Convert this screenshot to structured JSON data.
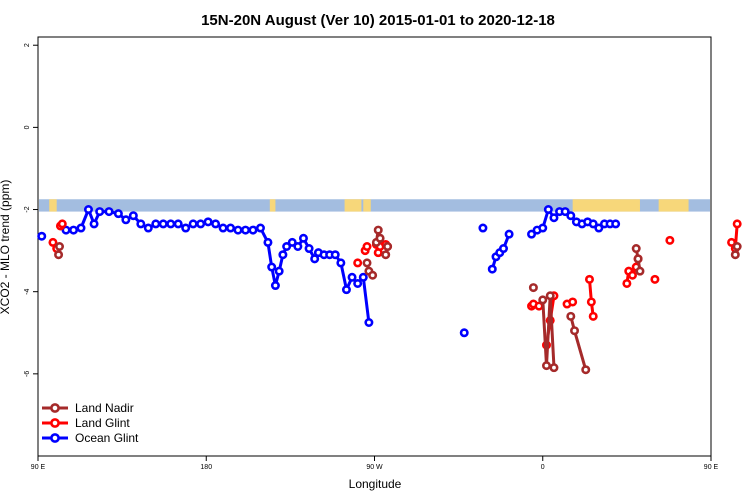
{
  "chart_data": {
    "type": "line",
    "title": "15N-20N August (Ver 10)   2015-01-01 to 2020-12-18",
    "xlabel": "Longitude",
    "ylabel": "XCO2 - MLO trend (ppm)",
    "xlim": [
      90,
      450
    ],
    "ylim": [
      -8,
      2.2
    ],
    "x_ticks": [
      {
        "value": 90,
        "label": "90 E"
      },
      {
        "value": 180,
        "label": "180"
      },
      {
        "value": 270,
        "label": "90 W"
      },
      {
        "value": 360,
        "label": "0"
      },
      {
        "value": 450,
        "label": "90 E"
      },
      {
        "value": 540,
        "label": "180"
      }
    ],
    "y_ticks": [
      {
        "value": 2,
        "label": "2"
      },
      {
        "value": 0,
        "label": "0"
      },
      {
        "value": -2,
        "label": "-2"
      },
      {
        "value": -4,
        "label": "-4"
      },
      {
        "value": -6,
        "label": "-6"
      }
    ],
    "grid": false,
    "legend_position": "bottom-left",
    "land_ocean_strip": {
      "y_range": [
        -1.75,
        -2.05
      ],
      "ocean_color": "#a3bde0",
      "land_color": "#f7d77a",
      "land_segments": [
        [
          96,
          100
        ],
        [
          214,
          217
        ],
        [
          254,
          263
        ],
        [
          264,
          268
        ],
        [
          376,
          412
        ],
        [
          422,
          438
        ],
        [
          456,
          462
        ],
        [
          510,
          520
        ]
      ]
    },
    "series": [
      {
        "name": "Land Nadir",
        "color": "#a52a2a",
        "segments": [
          [
            [
              101,
              -3.1
            ],
            [
              101.5,
              -2.9
            ]
          ],
          [
            [
              266,
              -3.3
            ],
            [
              267,
              -3.5
            ],
            [
              269,
              -3.6
            ]
          ],
          [
            [
              271,
              -2.8
            ],
            [
              272,
              -2.5
            ],
            [
              273,
              -2.7
            ]
          ],
          [
            [
              276,
              -3.1
            ],
            [
              277,
              -2.9
            ]
          ],
          [
            [
              355,
              -3.9
            ]
          ],
          [
            [
              360,
              -4.2
            ],
            [
              362,
              -5.8
            ],
            [
              364,
              -4.1
            ],
            [
              366,
              -5.85
            ]
          ],
          [
            [
              375,
              -4.6
            ],
            [
              377,
              -4.95
            ],
            [
              383,
              -5.9
            ]
          ],
          [
            [
              410,
              -2.95
            ],
            [
              411,
              -3.2
            ],
            [
              412,
              -3.5
            ]
          ],
          [
            [
              463,
              -3.1
            ],
            [
              464,
              -2.9
            ]
          ]
        ]
      },
      {
        "name": "Land Glint",
        "color": "#ff0000",
        "segments": [
          [
            [
              98,
              -2.8
            ],
            [
              100,
              -2.95
            ]
          ],
          [
            [
              102,
              -2.4
            ],
            [
              103,
              -2.35
            ]
          ],
          [
            [
              261,
              -3.3
            ]
          ],
          [
            [
              265,
              -3.0
            ],
            [
              266,
              -2.9
            ]
          ],
          [
            [
              271,
              -2.85
            ],
            [
              272,
              -3.05
            ],
            [
              273,
              -2.9
            ]
          ],
          [
            [
              276,
              -2.85
            ],
            [
              277,
              -2.9
            ]
          ],
          [
            [
              354,
              -4.35
            ],
            [
              355,
              -4.3
            ]
          ],
          [
            [
              358,
              -4.35
            ]
          ],
          [
            [
              362,
              -5.3
            ],
            [
              364,
              -4.7
            ],
            [
              366,
              -4.1
            ]
          ],
          [
            [
              373,
              -4.3
            ],
            [
              376,
              -4.25
            ]
          ],
          [
            [
              385,
              -3.7
            ],
            [
              386,
              -4.25
            ],
            [
              387,
              -4.6
            ]
          ],
          [
            [
              405,
              -3.8
            ],
            [
              406,
              -3.5
            ],
            [
              408,
              -3.6
            ],
            [
              410,
              -3.4
            ],
            [
              411,
              -3.2
            ]
          ],
          [
            [
              420,
              -3.7
            ]
          ],
          [
            [
              428,
              -2.75
            ]
          ],
          [
            [
              461,
              -2.8
            ],
            [
              463,
              -2.95
            ],
            [
              464,
              -2.35
            ]
          ]
        ]
      },
      {
        "name": "Ocean Glint",
        "color": "#0000ff",
        "segments": [
          [
            [
              92,
              -2.65
            ]
          ],
          [
            [
              105,
              -2.5
            ],
            [
              109,
              -2.5
            ],
            [
              113,
              -2.45
            ],
            [
              117,
              -2.0
            ],
            [
              120,
              -2.35
            ],
            [
              123,
              -2.05
            ],
            [
              128,
              -2.05
            ],
            [
              133,
              -2.1
            ],
            [
              137,
              -2.25
            ],
            [
              141,
              -2.15
            ],
            [
              145,
              -2.35
            ],
            [
              149,
              -2.45
            ],
            [
              153,
              -2.35
            ],
            [
              157,
              -2.35
            ],
            [
              161,
              -2.35
            ],
            [
              165,
              -2.35
            ],
            [
              169,
              -2.45
            ],
            [
              173,
              -2.35
            ],
            [
              177,
              -2.35
            ],
            [
              181,
              -2.3
            ],
            [
              185,
              -2.35
            ],
            [
              189,
              -2.45
            ],
            [
              193,
              -2.45
            ],
            [
              197,
              -2.5
            ],
            [
              201,
              -2.5
            ],
            [
              205,
              -2.5
            ],
            [
              209,
              -2.45
            ],
            [
              213,
              -2.8
            ],
            [
              215,
              -3.4
            ],
            [
              217,
              -3.85
            ],
            [
              219,
              -3.5
            ],
            [
              221,
              -3.1
            ],
            [
              223,
              -2.9
            ],
            [
              226,
              -2.8
            ],
            [
              229,
              -2.9
            ],
            [
              232,
              -2.7
            ],
            [
              235,
              -2.95
            ],
            [
              238,
              -3.2
            ],
            [
              240,
              -3.05
            ],
            [
              243,
              -3.1
            ],
            [
              246,
              -3.1
            ],
            [
              249,
              -3.1
            ],
            [
              252,
              -3.3
            ],
            [
              255,
              -3.95
            ],
            [
              258,
              -3.65
            ],
            [
              261,
              -3.8
            ],
            [
              264,
              -3.65
            ],
            [
              267,
              -4.75
            ]
          ],
          [
            [
              318,
              -5.0
            ]
          ],
          [
            [
              328,
              -2.45
            ]
          ],
          [
            [
              333,
              -3.45
            ],
            [
              335,
              -3.15
            ],
            [
              337,
              -3.05
            ],
            [
              339,
              -2.95
            ],
            [
              342,
              -2.6
            ]
          ],
          [
            [
              354,
              -2.6
            ],
            [
              357,
              -2.5
            ],
            [
              360,
              -2.45
            ],
            [
              363,
              -2.0
            ],
            [
              366,
              -2.2
            ],
            [
              369,
              -2.05
            ],
            [
              372,
              -2.05
            ],
            [
              375,
              -2.15
            ],
            [
              378,
              -2.3
            ],
            [
              381,
              -2.35
            ],
            [
              384,
              -2.3
            ],
            [
              387,
              -2.35
            ],
            [
              390,
              -2.45
            ],
            [
              393,
              -2.35
            ],
            [
              396,
              -2.35
            ],
            [
              399,
              -2.35
            ]
          ]
        ]
      }
    ]
  }
}
